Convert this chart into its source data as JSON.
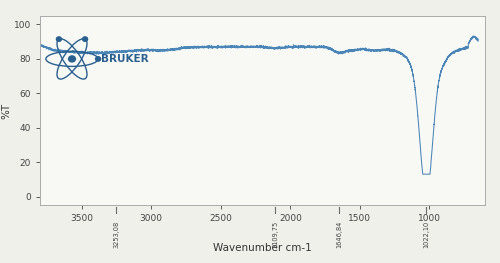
{
  "title": "",
  "xlabel": "Wavenumber cm-1",
  "ylabel": "%T",
  "xlim": [
    3800,
    600
  ],
  "ylim": [
    -5,
    105
  ],
  "yticks": [
    0,
    20,
    40,
    60,
    80,
    100
  ],
  "xticks": [
    3500,
    3000,
    2500,
    2000,
    1500,
    1000
  ],
  "peak_labels": [
    {
      "x": 3253.08,
      "label": "3253,08"
    },
    {
      "x": 2109.75,
      "label": "2109,75"
    },
    {
      "x": 1646.84,
      "label": "1646,84"
    },
    {
      "x": 1022.1,
      "label": "1022,10"
    }
  ],
  "line_color": "#4a85b8",
  "bg_color": "#f0f0eb",
  "plot_bg": "#f8f8f5",
  "bruker_color": "#2a6090",
  "atom_color": "#2a6090"
}
